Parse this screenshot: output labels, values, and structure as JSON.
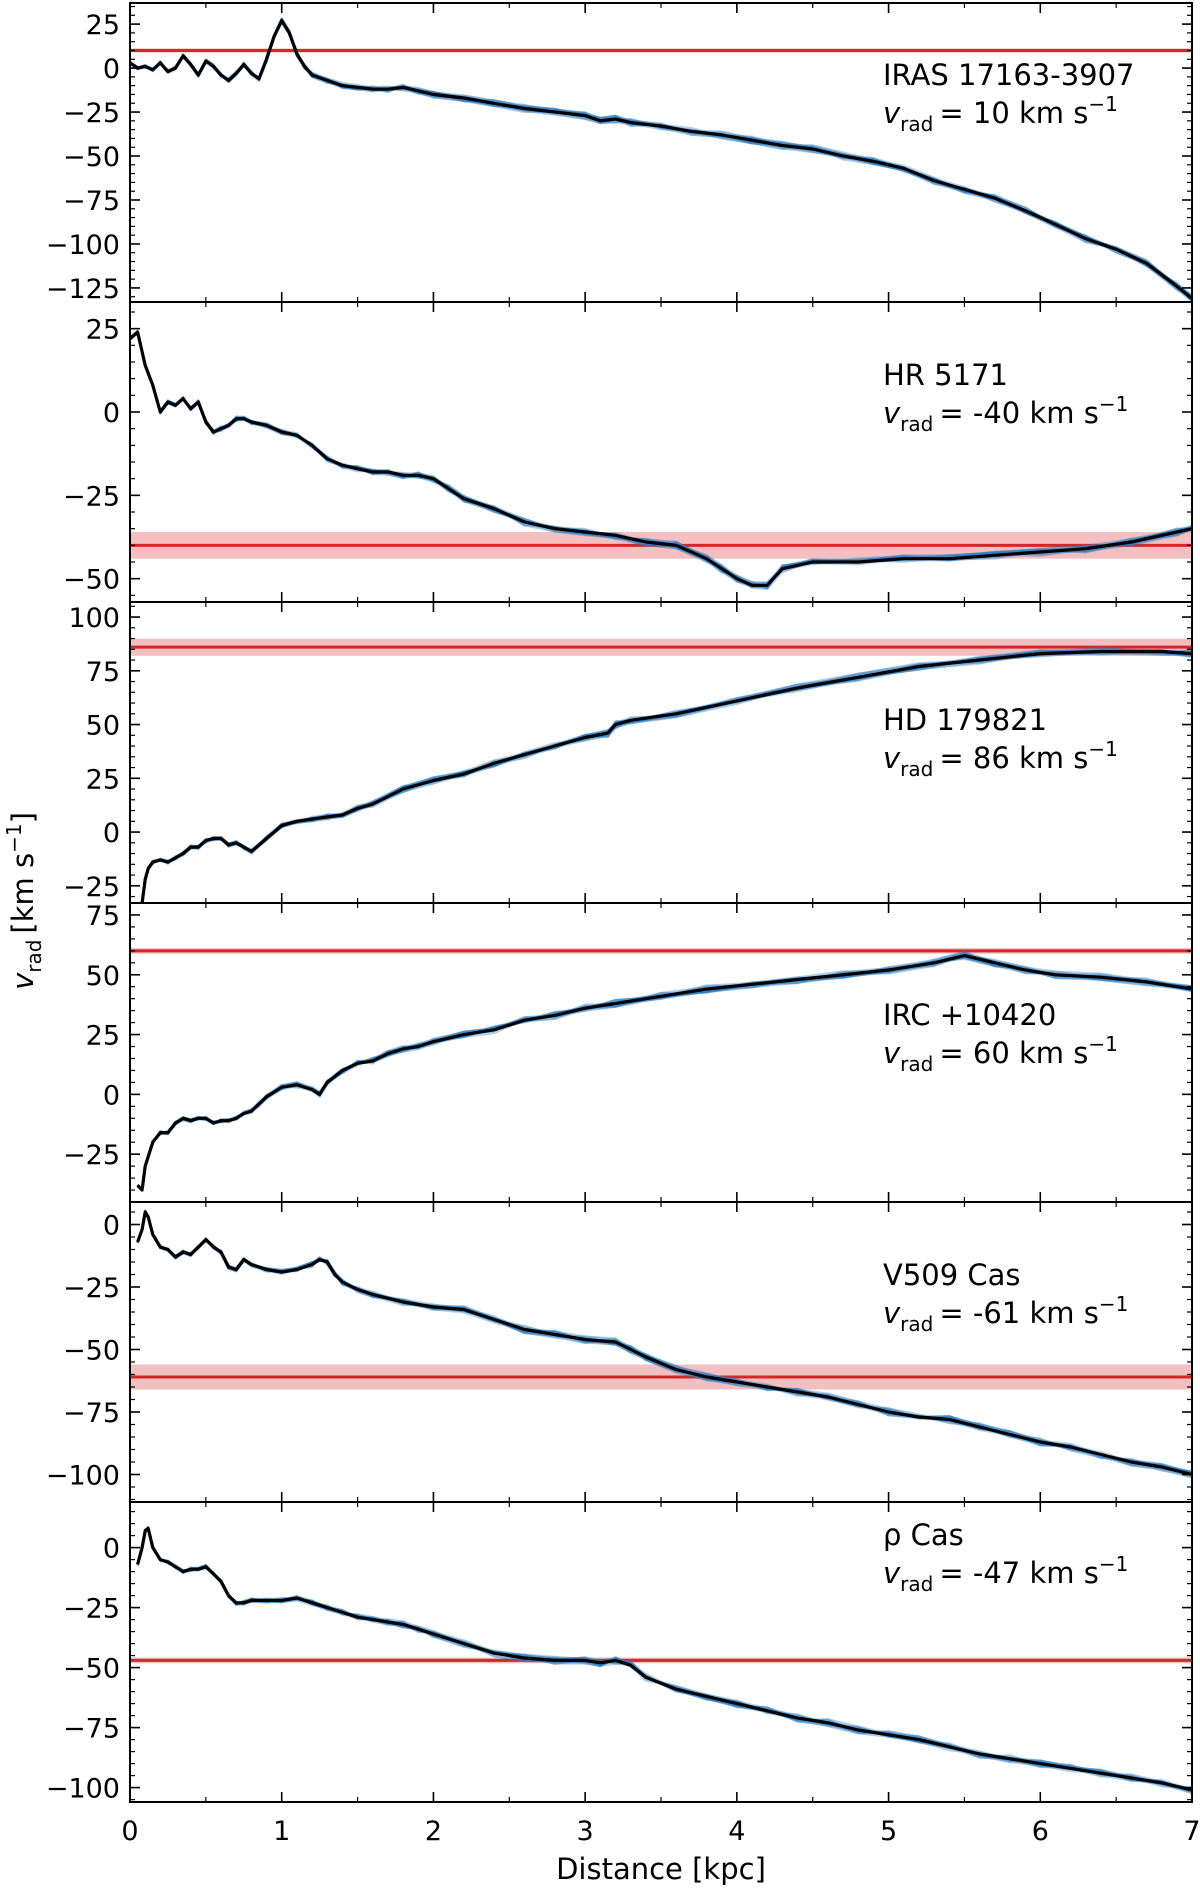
{
  "chart_data": {
    "type": "line",
    "xlabel": "Distance [kpc]",
    "ylabel_symbol": "v",
    "ylabel_sub": "rad",
    "ylabel_unit_open": "[km s",
    "ylabel_unit_sup": "−1",
    "ylabel_unit_close": "]",
    "xlim": [
      0,
      7
    ],
    "xticks": [
      0,
      1,
      2,
      3,
      4,
      5,
      6,
      7
    ],
    "xtick_labels": [
      "0",
      "1",
      "2",
      "3",
      "4",
      "5",
      "6",
      "7"
    ],
    "colors": {
      "samples": "#2a7fc4",
      "median": "#000000",
      "reference": "#d62728",
      "band": "#f2b8b9"
    },
    "panels": [
      {
        "name": "IRAS 17163-3907",
        "vrad_prefix": "= 10 km s",
        "vrad": 10,
        "vrad_err": 1.2,
        "ylim": [
          -133,
          37
        ],
        "yticks": [
          25,
          0,
          -25,
          -50,
          -75,
          -100,
          -125
        ],
        "ytick_labels": [
          "25",
          "0",
          "−25",
          "−50",
          "−75",
          "−100",
          "−125"
        ],
        "x": [
          0.0,
          0.05,
          0.1,
          0.15,
          0.2,
          0.25,
          0.3,
          0.35,
          0.4,
          0.45,
          0.5,
          0.55,
          0.6,
          0.65,
          0.7,
          0.75,
          0.8,
          0.85,
          0.9,
          0.95,
          1.0,
          1.05,
          1.1,
          1.15,
          1.2,
          1.3,
          1.4,
          1.5,
          1.6,
          1.7,
          1.8,
          1.9,
          2.0,
          2.2,
          2.4,
          2.6,
          2.8,
          3.0,
          3.1,
          3.2,
          3.3,
          3.5,
          3.7,
          3.9,
          4.1,
          4.3,
          4.5,
          4.7,
          4.9,
          5.1,
          5.3,
          5.5,
          5.7,
          5.9,
          6.1,
          6.3,
          6.5,
          6.7,
          6.9,
          7.0
        ],
        "y": [
          3,
          0,
          1,
          -1,
          3,
          -2,
          0,
          7,
          2,
          -4,
          4,
          1,
          -4,
          -7,
          -3,
          2,
          -3,
          -6,
          5,
          18,
          27,
          20,
          8,
          1,
          -4,
          -7,
          -10,
          -11,
          -12,
          -12,
          -11,
          -13,
          -15,
          -17,
          -20,
          -23,
          -25,
          -27,
          -30,
          -29,
          -31,
          -33,
          -36,
          -38,
          -41,
          -44,
          -46,
          -50,
          -53,
          -57,
          -64,
          -69,
          -74,
          -81,
          -89,
          -97,
          -103,
          -111,
          -124,
          -131
        ]
      },
      {
        "name": "HR 5171",
        "vrad_prefix": "= -40 km s",
        "vrad": -40,
        "vrad_err": 4,
        "ylim": [
          -57,
          33
        ],
        "yticks": [
          25,
          0,
          -25,
          -50
        ],
        "ytick_labels": [
          "25",
          "0",
          "−25",
          "−50"
        ],
        "x": [
          0.0,
          0.05,
          0.1,
          0.15,
          0.2,
          0.25,
          0.3,
          0.35,
          0.4,
          0.45,
          0.5,
          0.55,
          0.6,
          0.65,
          0.7,
          0.75,
          0.8,
          0.9,
          1.0,
          1.1,
          1.2,
          1.3,
          1.4,
          1.5,
          1.6,
          1.7,
          1.8,
          1.9,
          2.0,
          2.1,
          2.2,
          2.4,
          2.6,
          2.8,
          3.0,
          3.2,
          3.4,
          3.6,
          3.8,
          3.9,
          4.0,
          4.1,
          4.2,
          4.3,
          4.5,
          4.8,
          5.1,
          5.4,
          5.7,
          6.0,
          6.3,
          6.6,
          6.9,
          7.0
        ],
        "y": [
          22,
          24,
          14,
          8,
          0,
          3,
          2,
          4,
          1,
          3,
          -3,
          -6,
          -5,
          -4,
          -2,
          -2,
          -3,
          -4,
          -6,
          -7,
          -10,
          -14,
          -16,
          -17,
          -18,
          -18,
          -19,
          -19,
          -20,
          -23,
          -26,
          -29,
          -33,
          -35,
          -36,
          -37,
          -39,
          -40,
          -44,
          -47,
          -50,
          -52,
          -52,
          -47,
          -45,
          -45,
          -44,
          -44,
          -43,
          -42,
          -41,
          -39,
          -36,
          -35
        ]
      },
      {
        "name": "HD 179821",
        "vrad_prefix": "= 86 km s",
        "vrad": 86,
        "vrad_err": 4,
        "ylim": [
          -33,
          107
        ],
        "yticks": [
          100,
          75,
          50,
          25,
          0,
          -25
        ],
        "ytick_labels": [
          "100",
          "75",
          "50",
          "25",
          "0",
          "−25"
        ],
        "x": [
          0.08,
          0.1,
          0.12,
          0.15,
          0.2,
          0.25,
          0.3,
          0.35,
          0.4,
          0.45,
          0.5,
          0.55,
          0.6,
          0.65,
          0.7,
          0.75,
          0.8,
          0.9,
          1.0,
          1.1,
          1.2,
          1.3,
          1.4,
          1.5,
          1.6,
          1.8,
          2.0,
          2.2,
          2.4,
          2.6,
          2.8,
          3.0,
          3.15,
          3.2,
          3.3,
          3.6,
          4.0,
          4.4,
          4.8,
          5.2,
          5.6,
          6.0,
          6.4,
          6.8,
          7.0
        ],
        "y": [
          -33,
          -22,
          -17,
          -14,
          -13,
          -14,
          -12,
          -10,
          -7,
          -7,
          -4,
          -3,
          -3,
          -6,
          -5,
          -7,
          -9,
          -3,
          3,
          5,
          6,
          7,
          8,
          11,
          13,
          20,
          24,
          27,
          32,
          36,
          40,
          44,
          46,
          50,
          52,
          55,
          61,
          67,
          72,
          77,
          80,
          83,
          84,
          84,
          83
        ]
      },
      {
        "name": "IRC +10420",
        "vrad_prefix": "= 60 km s",
        "vrad": 60,
        "vrad_err": 1.2,
        "ylim": [
          -45,
          80
        ],
        "yticks": [
          75,
          50,
          25,
          0,
          -25
        ],
        "ytick_labels": [
          "75",
          "50",
          "25",
          "0",
          "−25"
        ],
        "x": [
          0.05,
          0.08,
          0.1,
          0.15,
          0.2,
          0.25,
          0.3,
          0.35,
          0.4,
          0.45,
          0.5,
          0.55,
          0.6,
          0.65,
          0.7,
          0.75,
          0.8,
          0.85,
          0.9,
          1.0,
          1.1,
          1.2,
          1.25,
          1.3,
          1.4,
          1.5,
          1.6,
          1.7,
          1.8,
          1.9,
          2.0,
          2.2,
          2.4,
          2.6,
          2.8,
          3.0,
          3.2,
          3.5,
          3.8,
          4.1,
          4.4,
          4.7,
          5.0,
          5.3,
          5.5,
          5.7,
          5.9,
          6.1,
          6.4,
          6.7,
          7.0
        ],
        "y": [
          -38,
          -40,
          -30,
          -20,
          -16,
          -16,
          -12,
          -10,
          -11,
          -10,
          -10,
          -12,
          -11,
          -11,
          -10,
          -8,
          -7,
          -4,
          -1,
          3,
          4,
          2,
          0,
          5,
          10,
          13,
          14,
          17,
          19,
          20,
          22,
          25,
          27,
          31,
          33,
          36,
          38,
          41,
          44,
          46,
          48,
          50,
          52,
          55,
          58,
          55,
          52,
          50,
          49,
          47,
          44
        ]
      },
      {
        "name": "V509 Cas",
        "vrad_prefix": "= -61 km s",
        "vrad": -61,
        "vrad_err": 5,
        "ylim": [
          -111,
          9
        ],
        "yticks": [
          0,
          -25,
          -50,
          -75,
          -100
        ],
        "ytick_labels": [
          "0",
          "−25",
          "−50",
          "−75",
          "−100"
        ],
        "x": [
          0.05,
          0.08,
          0.1,
          0.12,
          0.15,
          0.2,
          0.25,
          0.3,
          0.35,
          0.4,
          0.45,
          0.5,
          0.55,
          0.6,
          0.65,
          0.7,
          0.75,
          0.8,
          0.9,
          1.0,
          1.1,
          1.2,
          1.25,
          1.3,
          1.35,
          1.4,
          1.5,
          1.6,
          1.8,
          2.0,
          2.2,
          2.4,
          2.6,
          2.8,
          3.0,
          3.2,
          3.3,
          3.4,
          3.6,
          3.8,
          4.0,
          4.2,
          4.4,
          4.6,
          4.8,
          5.0,
          5.2,
          5.4,
          5.6,
          5.8,
          6.0,
          6.2,
          6.4,
          6.6,
          6.8,
          7.0
        ],
        "y": [
          -7,
          -2,
          5,
          3,
          -4,
          -9,
          -10,
          -13,
          -11,
          -12,
          -9,
          -6,
          -9,
          -11,
          -17,
          -18,
          -14,
          -16,
          -18,
          -19,
          -18,
          -16,
          -14,
          -15,
          -20,
          -23,
          -26,
          -28,
          -31,
          -33,
          -34,
          -38,
          -42,
          -44,
          -46,
          -47,
          -50,
          -53,
          -58,
          -61,
          -63,
          -65,
          -67,
          -69,
          -72,
          -75,
          -77,
          -78,
          -81,
          -84,
          -87,
          -89,
          -92,
          -95,
          -97,
          -100
        ]
      },
      {
        "name": "ρ Cas",
        "vrad_prefix": "= -47 km s",
        "vrad": -47,
        "vrad_err": 1.2,
        "ylim": [
          -106,
          19
        ],
        "yticks": [
          0,
          -25,
          -50,
          -75,
          -100
        ],
        "ytick_labels": [
          "0",
          "−25",
          "−50",
          "−75",
          "−100"
        ],
        "x": [
          0.05,
          0.08,
          0.1,
          0.12,
          0.15,
          0.2,
          0.25,
          0.3,
          0.35,
          0.4,
          0.45,
          0.5,
          0.55,
          0.6,
          0.65,
          0.7,
          0.75,
          0.8,
          0.9,
          1.0,
          1.1,
          1.2,
          1.3,
          1.4,
          1.5,
          1.6,
          1.7,
          1.8,
          1.9,
          2.0,
          2.2,
          2.4,
          2.6,
          2.8,
          3.0,
          3.1,
          3.2,
          3.3,
          3.4,
          3.6,
          3.8,
          4.0,
          4.2,
          4.4,
          4.6,
          4.8,
          5.0,
          5.2,
          5.4,
          5.6,
          5.8,
          6.0,
          6.2,
          6.4,
          6.6,
          6.8,
          7.0
        ],
        "y": [
          -7,
          0,
          7,
          8,
          0,
          -5,
          -6,
          -8,
          -10,
          -9,
          -9,
          -8,
          -11,
          -14,
          -20,
          -23,
          -23,
          -22,
          -22,
          -22,
          -21,
          -23,
          -25,
          -27,
          -29,
          -30,
          -31,
          -32,
          -34,
          -36,
          -40,
          -44,
          -46,
          -47,
          -47,
          -48,
          -47,
          -49,
          -54,
          -59,
          -62,
          -65,
          -68,
          -71,
          -73,
          -76,
          -78,
          -80,
          -83,
          -86,
          -88,
          -90,
          -92,
          -94,
          -96,
          -98,
          -101
        ]
      }
    ]
  }
}
